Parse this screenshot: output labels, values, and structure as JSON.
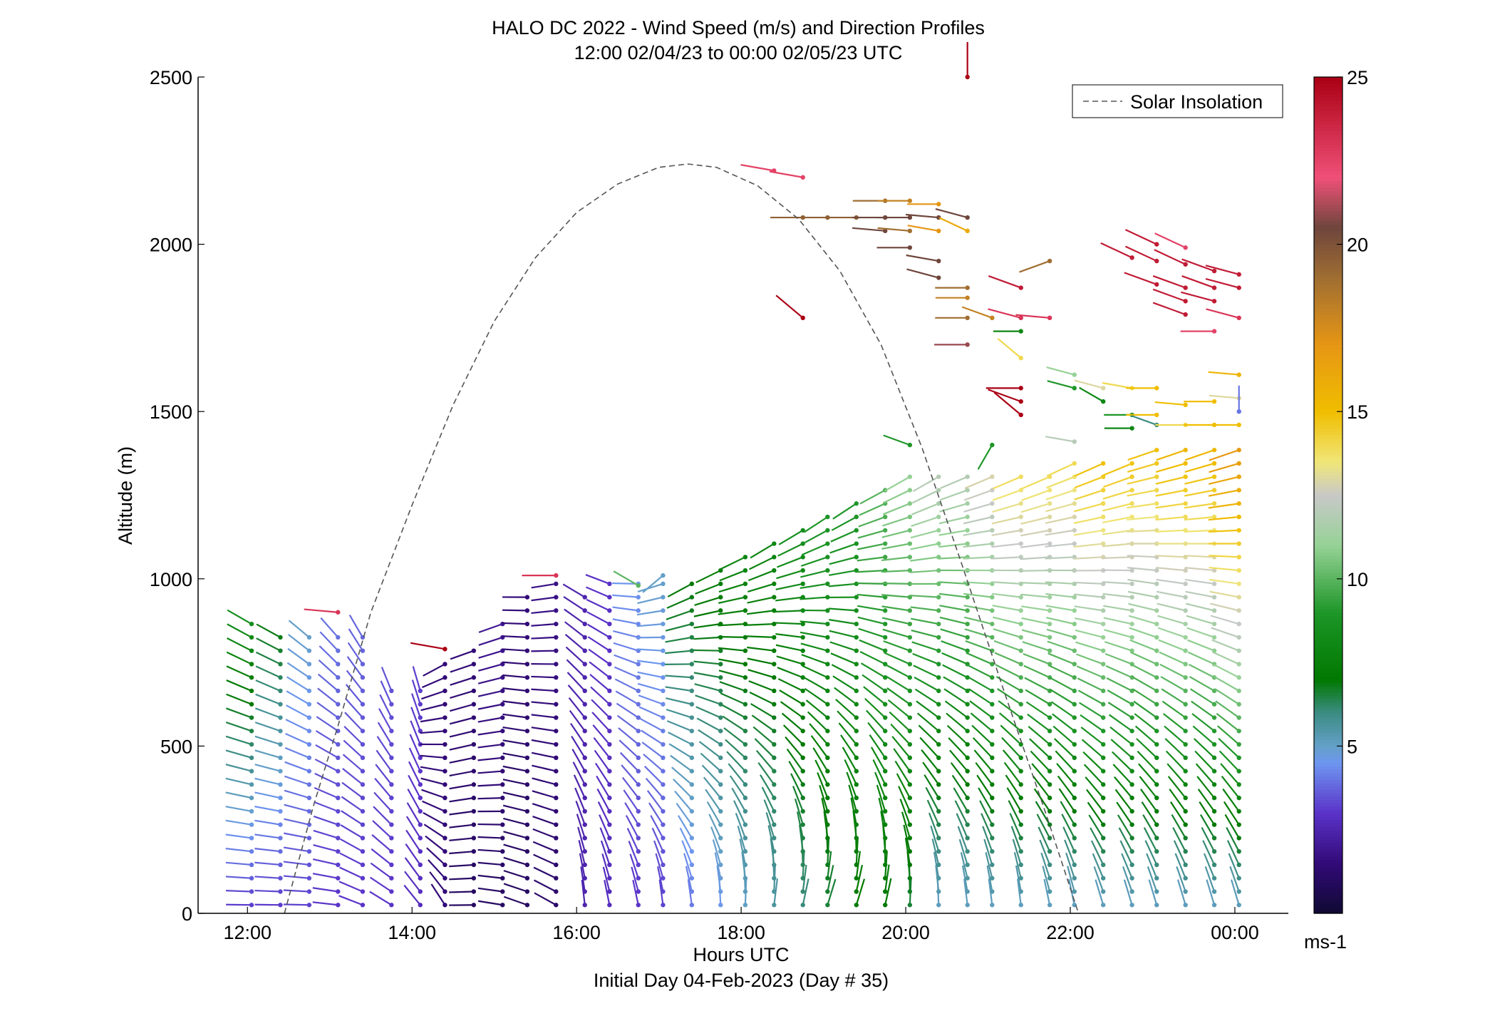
{
  "chart_data": {
    "type": "scatter",
    "title": "HALO DC 2022 - Wind Speed (m/s) and Direction Profiles",
    "subtitle": "12:00 02/04/23 to 00:00 02/05/23  UTC",
    "xlabel": "Hours UTC",
    "xlabel2": "Initial Day 04-Feb-2023 (Day # 35)",
    "ylabel": "Altitude (m)",
    "xlim_hours": [
      11.4,
      24.65
    ],
    "ylim": [
      0,
      2500
    ],
    "xticks": [
      {
        "value": 12,
        "label": "12:00"
      },
      {
        "value": 14,
        "label": "14:00"
      },
      {
        "value": 16,
        "label": "16:00"
      },
      {
        "value": 18,
        "label": "18:00"
      },
      {
        "value": 20,
        "label": "20:00"
      },
      {
        "value": 22,
        "label": "22:00"
      },
      {
        "value": 24,
        "label": "00:00"
      }
    ],
    "yticks": [
      0,
      500,
      1000,
      1500,
      2000,
      2500
    ],
    "legend": {
      "label": "Solar Insolation",
      "placement": "top-right"
    },
    "colorbar": {
      "min": 0,
      "max": 25,
      "ticks": [
        5,
        10,
        15,
        20,
        25
      ],
      "unit": "ms-1"
    },
    "solar_insolation_curve": {
      "color": "#555555",
      "style": "dashed",
      "points": [
        [
          12.45,
          0
        ],
        [
          12.8,
          320
        ],
        [
          13.1,
          560
        ],
        [
          13.5,
          900
        ],
        [
          14.0,
          1220
        ],
        [
          14.5,
          1520
        ],
        [
          15.0,
          1770
        ],
        [
          15.5,
          1960
        ],
        [
          16.0,
          2095
        ],
        [
          16.5,
          2180
        ],
        [
          17.0,
          2230
        ],
        [
          17.35,
          2240
        ],
        [
          17.7,
          2230
        ],
        [
          18.2,
          2175
        ],
        [
          18.7,
          2075
        ],
        [
          19.2,
          1920
        ],
        [
          19.7,
          1700
        ],
        [
          20.2,
          1390
        ],
        [
          20.7,
          1030
        ],
        [
          21.2,
          660
        ],
        [
          21.7,
          300
        ],
        [
          22.1,
          0
        ]
      ]
    },
    "wind_profiles": [
      {
        "t": 12.05,
        "top": 870,
        "speed_base": 3.0,
        "speed_top": 8.5,
        "dir_base": 270,
        "dir_top": 300
      },
      {
        "t": 12.4,
        "top": 860,
        "speed_base": 3.0,
        "speed_top": 7.0,
        "dir_base": 270,
        "dir_top": 300
      },
      {
        "t": 12.75,
        "top": 830,
        "speed_base": 3.2,
        "speed_top": 5.0,
        "dir_base": 270,
        "dir_top": 310
      },
      {
        "t": 13.1,
        "top": 850,
        "speed_base": 3.0,
        "speed_top": 4.0,
        "dir_base": 275,
        "dir_top": 320
      },
      {
        "t": 13.4,
        "top": 830,
        "speed_base": 3.0,
        "speed_top": 3.8,
        "dir_base": 290,
        "dir_top": 330
      },
      {
        "t": 13.75,
        "top": 700,
        "speed_base": 3.0,
        "speed_top": 3.5,
        "dir_base": 300,
        "dir_top": 340
      },
      {
        "t": 14.1,
        "top": 700,
        "speed_base": 2.8,
        "speed_top": 3.2,
        "dir_base": 320,
        "dir_top": 345
      },
      {
        "t": 14.4,
        "top": 760,
        "speed_base": 1.5,
        "speed_top": 1.5,
        "dir_base": 330,
        "dir_top": 240
      },
      {
        "t": 14.75,
        "top": 800,
        "speed_base": 1.0,
        "speed_top": 1.5,
        "dir_base": 270,
        "dir_top": 250
      },
      {
        "t": 15.1,
        "top": 880,
        "speed_base": 1.0,
        "speed_top": 2.0,
        "dir_base": 280,
        "dir_top": 250
      },
      {
        "t": 15.4,
        "top": 960,
        "speed_base": 1.0,
        "speed_top": 1.5,
        "dir_base": 290,
        "dir_top": 270
      },
      {
        "t": 15.75,
        "top": 1010,
        "speed_base": 1.2,
        "speed_top": 1.8,
        "dir_base": 300,
        "dir_top": 260
      },
      {
        "t": 16.1,
        "top": 960,
        "speed_base": 2.5,
        "speed_top": 2.5,
        "dir_base": 355,
        "dir_top": 300
      },
      {
        "t": 16.4,
        "top": 1000,
        "speed_base": 2.8,
        "speed_top": 3.0,
        "dir_base": 350,
        "dir_top": 290
      },
      {
        "t": 16.75,
        "top": 1000,
        "speed_base": 3.0,
        "speed_top": 4.5,
        "dir_base": 350,
        "dir_top": 270
      },
      {
        "t": 17.05,
        "top": 1010,
        "speed_base": 3.2,
        "speed_top": 5.0,
        "dir_base": 355,
        "dir_top": 250
      },
      {
        "t": 17.4,
        "top": 1000,
        "speed_base": 4.0,
        "speed_top": 7.0,
        "dir_base": 355,
        "dir_top": 240
      },
      {
        "t": 17.75,
        "top": 1060,
        "speed_base": 4.5,
        "speed_top": 7.5,
        "dir_base": 0,
        "dir_top": 240
      },
      {
        "t": 18.05,
        "top": 1100,
        "speed_base": 5.0,
        "speed_top": 8.0,
        "dir_base": 5,
        "dir_top": 240
      },
      {
        "t": 18.4,
        "top": 1140,
        "speed_base": 5.5,
        "speed_top": 8.0,
        "dir_base": 10,
        "dir_top": 235
      },
      {
        "t": 18.75,
        "top": 1180,
        "speed_base": 6.0,
        "speed_top": 8.5,
        "dir_base": 15,
        "dir_top": 235
      },
      {
        "t": 19.05,
        "top": 1200,
        "speed_base": 6.5,
        "speed_top": 9.0,
        "dir_base": 20,
        "dir_top": 235
      },
      {
        "t": 19.4,
        "top": 1240,
        "speed_base": 7.0,
        "speed_top": 9.0,
        "dir_base": 20,
        "dir_top": 235
      },
      {
        "t": 19.75,
        "top": 1280,
        "speed_base": 7.0,
        "speed_top": 10.0,
        "dir_base": 15,
        "dir_top": 240
      },
      {
        "t": 20.05,
        "top": 1310,
        "speed_base": 6.5,
        "speed_top": 11.0,
        "dir_base": 5,
        "dir_top": 240
      },
      {
        "t": 20.4,
        "top": 1310,
        "speed_base": 5.0,
        "speed_top": 12.0,
        "dir_base": 0,
        "dir_top": 240
      },
      {
        "t": 20.75,
        "top": 1330,
        "speed_base": 5.0,
        "speed_top": 12.0,
        "dir_base": 355,
        "dir_top": 245
      },
      {
        "t": 21.05,
        "top": 1330,
        "speed_base": 5.0,
        "speed_top": 13.0,
        "dir_base": 355,
        "dir_top": 245
      },
      {
        "t": 21.4,
        "top": 1330,
        "speed_base": 5.0,
        "speed_top": 14.0,
        "dir_base": 355,
        "dir_top": 245
      },
      {
        "t": 21.75,
        "top": 1330,
        "speed_base": 5.0,
        "speed_top": 14.0,
        "dir_base": 350,
        "dir_top": 245
      },
      {
        "t": 22.05,
        "top": 1350,
        "speed_base": 5.0,
        "speed_top": 14.0,
        "dir_base": 350,
        "dir_top": 245
      },
      {
        "t": 22.4,
        "top": 1360,
        "speed_base": 5.0,
        "speed_top": 15.0,
        "dir_base": 345,
        "dir_top": 245
      },
      {
        "t": 22.75,
        "top": 1380,
        "speed_base": 5.0,
        "speed_top": 15.0,
        "dir_base": 345,
        "dir_top": 245
      },
      {
        "t": 23.05,
        "top": 1400,
        "speed_base": 5.0,
        "speed_top": 15.0,
        "dir_base": 345,
        "dir_top": 250
      },
      {
        "t": 23.4,
        "top": 1400,
        "speed_base": 5.0,
        "speed_top": 15.5,
        "dir_base": 345,
        "dir_top": 250
      },
      {
        "t": 23.75,
        "top": 1400,
        "speed_base": 5.0,
        "speed_top": 15.5,
        "dir_base": 345,
        "dir_top": 250
      },
      {
        "t": 24.05,
        "top": 1400,
        "speed_base": 5.0,
        "speed_top": 17.0,
        "dir_base": 345,
        "dir_top": 250
      }
    ],
    "upper_barbs": [
      {
        "t": 18.4,
        "alt": 2220,
        "speed": 22.5,
        "dir": 280
      },
      {
        "t": 18.75,
        "alt": 2200,
        "speed": 22.5,
        "dir": 280
      },
      {
        "t": 18.75,
        "alt": 2080,
        "speed": 19.5,
        "dir": 270
      },
      {
        "t": 19.05,
        "alt": 2080,
        "speed": 19.5,
        "dir": 270
      },
      {
        "t": 19.4,
        "alt": 2080,
        "speed": 19.5,
        "dir": 270
      },
      {
        "t": 19.75,
        "alt": 2080,
        "speed": 20.5,
        "dir": 270
      },
      {
        "t": 20.05,
        "alt": 2080,
        "speed": 20.5,
        "dir": 270
      },
      {
        "t": 20.4,
        "alt": 2080,
        "speed": 20.5,
        "dir": 275
      },
      {
        "t": 20.75,
        "alt": 2080,
        "speed": 20.5,
        "dir": 285
      },
      {
        "t": 19.75,
        "alt": 2130,
        "speed": 19.0,
        "dir": 270
      },
      {
        "t": 20.05,
        "alt": 2130,
        "speed": 18.0,
        "dir": 270
      },
      {
        "t": 20.4,
        "alt": 2120,
        "speed": 17.0,
        "dir": 270
      },
      {
        "t": 19.75,
        "alt": 2040,
        "speed": 20.5,
        "dir": 275
      },
      {
        "t": 20.05,
        "alt": 2040,
        "speed": 19.0,
        "dir": 275
      },
      {
        "t": 20.4,
        "alt": 2040,
        "speed": 17.0,
        "dir": 280
      },
      {
        "t": 20.75,
        "alt": 2040,
        "speed": 16.0,
        "dir": 295
      },
      {
        "t": 20.05,
        "alt": 1990,
        "speed": 20.5,
        "dir": 270
      },
      {
        "t": 20.4,
        "alt": 1950,
        "speed": 20.5,
        "dir": 280
      },
      {
        "t": 20.4,
        "alt": 1900,
        "speed": 20.5,
        "dir": 285
      },
      {
        "t": 20.75,
        "alt": 1870,
        "speed": 19.0,
        "dir": 270
      },
      {
        "t": 20.75,
        "alt": 1840,
        "speed": 18.0,
        "dir": 270
      },
      {
        "t": 20.75,
        "alt": 1780,
        "speed": 19.0,
        "dir": 270
      },
      {
        "t": 20.75,
        "alt": 1700,
        "speed": 21.0,
        "dir": 270
      },
      {
        "t": 21.05,
        "alt": 1780,
        "speed": 18.0,
        "dir": 290
      },
      {
        "t": 21.4,
        "alt": 1870,
        "speed": 24.0,
        "dir": 290
      },
      {
        "t": 21.4,
        "alt": 1780,
        "speed": 23.0,
        "dir": 285
      },
      {
        "t": 21.75,
        "alt": 1780,
        "speed": 23.0,
        "dir": 275
      },
      {
        "t": 21.75,
        "alt": 1950,
        "speed": 19.0,
        "dir": 250
      },
      {
        "t": 21.4,
        "alt": 1740,
        "speed": 8.0,
        "dir": 270
      },
      {
        "t": 21.4,
        "alt": 1660,
        "speed": 14.0,
        "dir": 310
      },
      {
        "t": 21.4,
        "alt": 1570,
        "speed": 25.0,
        "dir": 270
      },
      {
        "t": 21.4,
        "alt": 1530,
        "speed": 25.0,
        "dir": 290
      },
      {
        "t": 21.4,
        "alt": 1490,
        "speed": 25.0,
        "dir": 310
      },
      {
        "t": 18.75,
        "alt": 1780,
        "speed": 25.0,
        "dir": 310
      },
      {
        "t": 20.75,
        "alt": 2500,
        "speed": 25.0,
        "dir": 0
      },
      {
        "t": 23.05,
        "alt": 2000,
        "speed": 24.0,
        "dir": 295
      },
      {
        "t": 23.4,
        "alt": 1990,
        "speed": 22.5,
        "dir": 295
      },
      {
        "t": 22.75,
        "alt": 1960,
        "speed": 24.0,
        "dir": 295
      },
      {
        "t": 23.05,
        "alt": 1950,
        "speed": 24.0,
        "dir": 295
      },
      {
        "t": 23.4,
        "alt": 1940,
        "speed": 24.0,
        "dir": 295
      },
      {
        "t": 23.75,
        "alt": 1920,
        "speed": 24.0,
        "dir": 290
      },
      {
        "t": 24.05,
        "alt": 1910,
        "speed": 24.0,
        "dir": 285
      },
      {
        "t": 23.05,
        "alt": 1880,
        "speed": 24.0,
        "dir": 290
      },
      {
        "t": 23.4,
        "alt": 1870,
        "speed": 24.0,
        "dir": 290
      },
      {
        "t": 23.75,
        "alt": 1870,
        "speed": 24.0,
        "dir": 290
      },
      {
        "t": 24.05,
        "alt": 1870,
        "speed": 24.0,
        "dir": 285
      },
      {
        "t": 23.4,
        "alt": 1830,
        "speed": 24.0,
        "dir": 290
      },
      {
        "t": 23.75,
        "alt": 1830,
        "speed": 24.0,
        "dir": 285
      },
      {
        "t": 23.4,
        "alt": 1790,
        "speed": 24.0,
        "dir": 290
      },
      {
        "t": 24.05,
        "alt": 1780,
        "speed": 23.0,
        "dir": 285
      },
      {
        "t": 23.75,
        "alt": 1740,
        "speed": 22.5,
        "dir": 270
      },
      {
        "t": 22.05,
        "alt": 1610,
        "speed": 11.0,
        "dir": 285
      },
      {
        "t": 22.4,
        "alt": 1570,
        "speed": 13.0,
        "dir": 285
      },
      {
        "t": 22.05,
        "alt": 1570,
        "speed": 9.0,
        "dir": 285
      },
      {
        "t": 22.4,
        "alt": 1530,
        "speed": 8.0,
        "dir": 300
      },
      {
        "t": 22.75,
        "alt": 1570,
        "speed": 14.0,
        "dir": 280
      },
      {
        "t": 23.05,
        "alt": 1570,
        "speed": 15.0,
        "dir": 270
      },
      {
        "t": 22.75,
        "alt": 1490,
        "speed": 9.0,
        "dir": 270
      },
      {
        "t": 23.05,
        "alt": 1490,
        "speed": 15.0,
        "dir": 270
      },
      {
        "t": 22.75,
        "alt": 1450,
        "speed": 8.0,
        "dir": 270
      },
      {
        "t": 23.05,
        "alt": 1460,
        "speed": 6.0,
        "dir": 290
      },
      {
        "t": 23.4,
        "alt": 1460,
        "speed": 14.0,
        "dir": 270
      },
      {
        "t": 23.75,
        "alt": 1460,
        "speed": 15.0,
        "dir": 270
      },
      {
        "t": 24.05,
        "alt": 1460,
        "speed": 15.0,
        "dir": 270
      },
      {
        "t": 23.4,
        "alt": 1520,
        "speed": 15.0,
        "dir": 275
      },
      {
        "t": 23.75,
        "alt": 1530,
        "speed": 15.0,
        "dir": 270
      },
      {
        "t": 24.05,
        "alt": 1540,
        "speed": 13.0,
        "dir": 275
      },
      {
        "t": 24.05,
        "alt": 1610,
        "speed": 15.5,
        "dir": 275
      },
      {
        "t": 24.05,
        "alt": 1500,
        "speed": 4.0,
        "dir": 0
      },
      {
        "t": 20.05,
        "alt": 1400,
        "speed": 9.0,
        "dir": 290
      },
      {
        "t": 21.05,
        "alt": 1400,
        "speed": 9.0,
        "dir": 210
      },
      {
        "t": 22.05,
        "alt": 1410,
        "speed": 12.0,
        "dir": 280
      },
      {
        "t": 14.4,
        "alt": 790,
        "speed": 25.0,
        "dir": 280
      },
      {
        "t": 13.1,
        "alt": 900,
        "speed": 23.0,
        "dir": 275
      },
      {
        "t": 15.75,
        "alt": 1010,
        "speed": 23.0,
        "dir": 270
      },
      {
        "t": 17.05,
        "alt": 1010,
        "speed": 5.0,
        "dir": 230
      },
      {
        "t": 16.75,
        "alt": 980,
        "speed": 10.0,
        "dir": 300
      }
    ]
  }
}
